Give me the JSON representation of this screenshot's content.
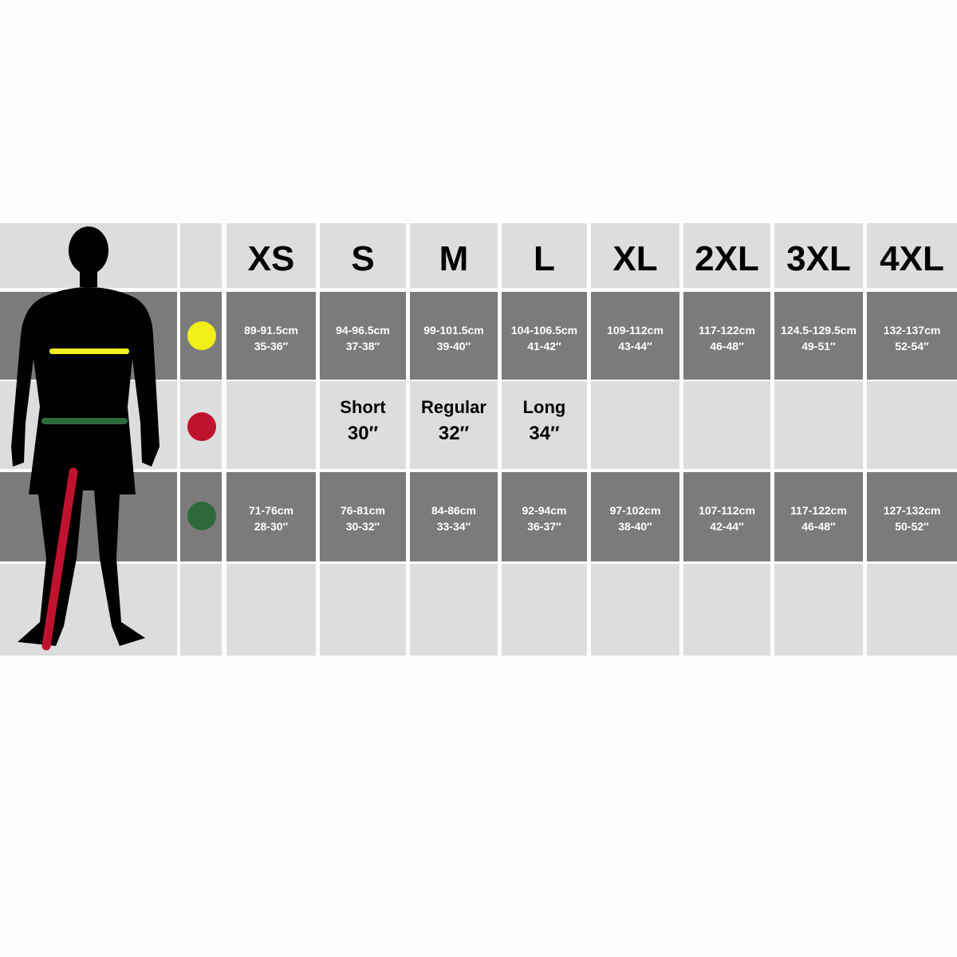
{
  "sizes": [
    "XS",
    "S",
    "M",
    "L",
    "XL",
    "2XL",
    "3XL",
    "4XL"
  ],
  "markers": {
    "chest_color": "#f2ee1a",
    "inseam_color": "#c0122e",
    "waist_color": "#2e6b3c"
  },
  "chest": [
    {
      "cm": "89-91.5cm",
      "in": "35-36″"
    },
    {
      "cm": "94-96.5cm",
      "in": "37-38″"
    },
    {
      "cm": "99-101.5cm",
      "in": "39-40″"
    },
    {
      "cm": "104-106.5cm",
      "in": "41-42″"
    },
    {
      "cm": "109-112cm",
      "in": "43-44″"
    },
    {
      "cm": "117-122cm",
      "in": "46-48″"
    },
    {
      "cm": "124.5-129.5cm",
      "in": "49-51″"
    },
    {
      "cm": "132-137cm",
      "in": "52-54″"
    }
  ],
  "inseam": [
    {
      "label": "",
      "value": ""
    },
    {
      "label": "Short",
      "value": "30″"
    },
    {
      "label": "Regular",
      "value": "32″"
    },
    {
      "label": "Long",
      "value": "34″"
    },
    {
      "label": "",
      "value": ""
    },
    {
      "label": "",
      "value": ""
    },
    {
      "label": "",
      "value": ""
    },
    {
      "label": "",
      "value": ""
    }
  ],
  "waist": [
    {
      "cm": "71-76cm",
      "in": "28-30″"
    },
    {
      "cm": "76-81cm",
      "in": "30-32″"
    },
    {
      "cm": "84-86cm",
      "in": "33-34″"
    },
    {
      "cm": "92-94cm",
      "in": "36-37″"
    },
    {
      "cm": "97-102cm",
      "in": "38-40″"
    },
    {
      "cm": "107-112cm",
      "in": "42-44″"
    },
    {
      "cm": "117-122cm",
      "in": "46-48″"
    },
    {
      "cm": "127-132cm",
      "in": "50-52″"
    }
  ]
}
